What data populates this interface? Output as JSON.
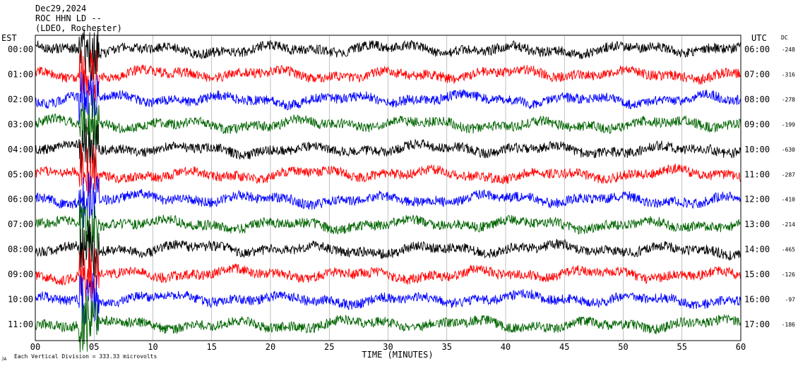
{
  "chart_data": {
    "type": "line",
    "title_lines": [
      "Dec29,2024",
      "ROC HHN LD --",
      "(LDEO, Rochester)"
    ],
    "left_axis_label": "EST",
    "right_axis_label": "UTC",
    "dc_label": "DC",
    "xlabel": "TIME (MINUTES)",
    "footer_mark": "JA",
    "footer_note": "Each Vertical Division = 333.33 microvolts",
    "x_ticks": [
      "00",
      "05",
      "10",
      "15",
      "20",
      "25",
      "30",
      "35",
      "40",
      "45",
      "50",
      "55",
      "60"
    ],
    "xlim": [
      0,
      60
    ],
    "grid_vertical": true,
    "colors": [
      "#000000",
      "#ff0000",
      "#0000ff",
      "#006400"
    ],
    "rows": [
      {
        "est": "00:00",
        "utc": "06:00",
        "dc": "-248"
      },
      {
        "est": "01:00",
        "utc": "07:00",
        "dc": "-316"
      },
      {
        "est": "02:00",
        "utc": "08:00",
        "dc": "-278"
      },
      {
        "est": "03:00",
        "utc": "09:00",
        "dc": "-199"
      },
      {
        "est": "04:00",
        "utc": "10:00",
        "dc": "-630"
      },
      {
        "est": "05:00",
        "utc": "11:00",
        "dc": "-287"
      },
      {
        "est": "06:00",
        "utc": "12:00",
        "dc": "-410"
      },
      {
        "est": "07:00",
        "utc": "13:00",
        "dc": "-214"
      },
      {
        "est": "08:00",
        "utc": "14:00",
        "dc": "-465"
      },
      {
        "est": "09:00",
        "utc": "15:00",
        "dc": "-126"
      },
      {
        "est": "10:00",
        "utc": "16:00",
        "dc": "-97"
      },
      {
        "est": "11:00",
        "utc": "17:00",
        "dc": "-186"
      }
    ]
  }
}
